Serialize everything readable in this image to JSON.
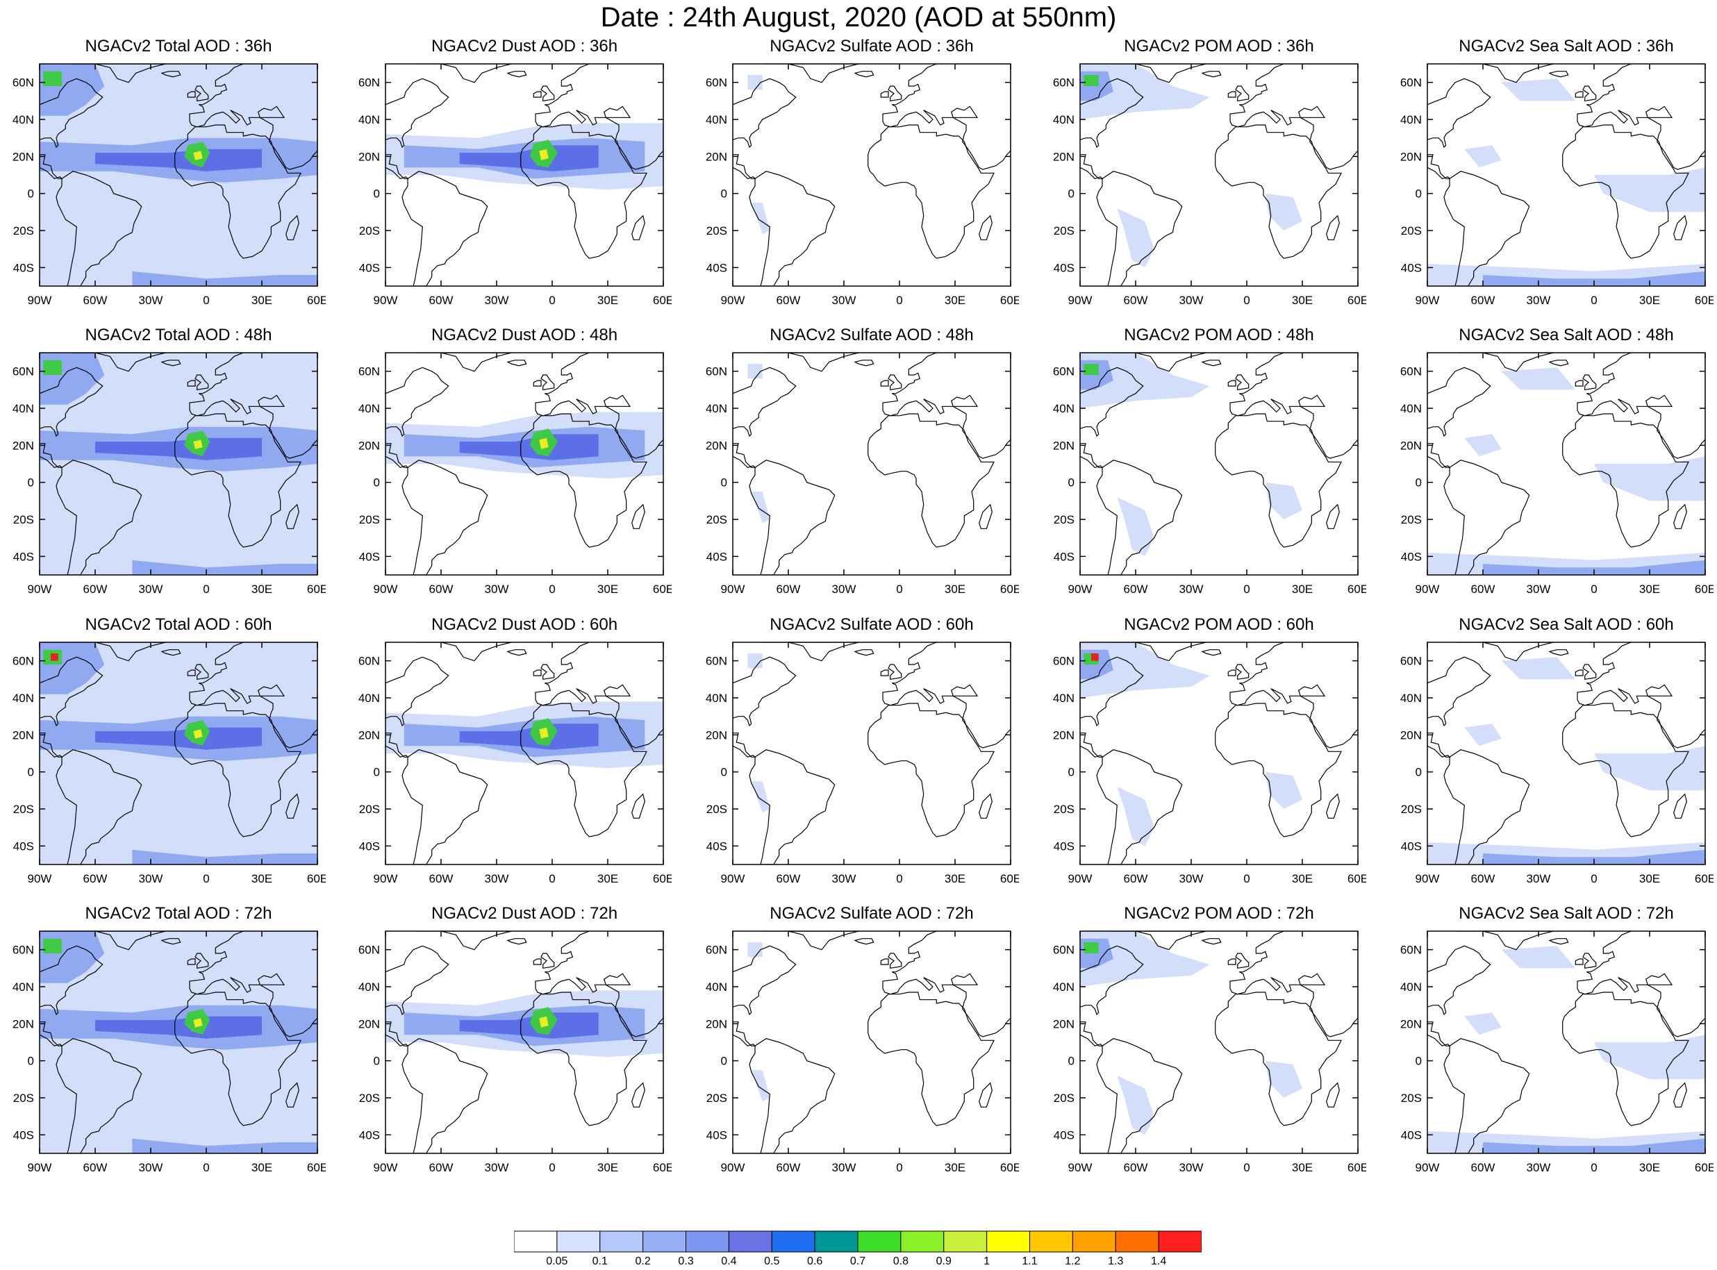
{
  "title": "Date : 24th August, 2020 (AOD at 550nm)",
  "lon_labels": [
    "90W",
    "60W",
    "30W",
    "0",
    "30E",
    "60E"
  ],
  "lat_labels": [
    "60N",
    "40N",
    "20N",
    "0",
    "20S",
    "40S"
  ],
  "lon_range": [
    -90,
    60
  ],
  "lat_range": [
    -50,
    70
  ],
  "colors": {
    "map_outline": "#000000",
    "aerosol_low": "#d0dcfa",
    "aerosol_mid": "#8ca5f0",
    "aerosol_high": "#5a6ce6",
    "hotspot_green": "#3ccc3c",
    "hotspot_yellow": "#f0f020",
    "hotspot_red": "#e62020"
  },
  "colorbar": {
    "colors": [
      "#ffffff",
      "#d6e2ff",
      "#b4c8fa",
      "#96aff5",
      "#7d96f0",
      "#6a72e6",
      "#1e6ef0",
      "#009696",
      "#3cdc28",
      "#8cf028",
      "#c8f03c",
      "#ffff00",
      "#ffc800",
      "#ffa000",
      "#ff6e00",
      "#ff1e1e"
    ],
    "labels": [
      "0.05",
      "0.1",
      "0.2",
      "0.3",
      "0.4",
      "0.5",
      "0.6",
      "0.7",
      "0.8",
      "0.9",
      "1",
      "1.1",
      "1.2",
      "1.3",
      "1.4"
    ]
  },
  "rows": [
    {
      "panels": [
        {
          "title": "NGACv2 Total AOD : 36h",
          "type": "total"
        },
        {
          "title": "NGACv2 Dust AOD : 36h",
          "type": "dust"
        },
        {
          "title": "NGACv2 Sulfate AOD : 36h",
          "type": "sulfate"
        },
        {
          "title": "NGACv2 POM AOD : 36h",
          "type": "pom"
        },
        {
          "title": "NGACv2 Sea Salt AOD : 36h",
          "type": "seasalt"
        }
      ]
    },
    {
      "panels": [
        {
          "title": "NGACv2 Total AOD : 48h",
          "type": "total"
        },
        {
          "title": "NGACv2 Dust AOD : 48h",
          "type": "dust"
        },
        {
          "title": "NGACv2 Sulfate AOD : 48h",
          "type": "sulfate"
        },
        {
          "title": "NGACv2 POM AOD : 48h",
          "type": "pom"
        },
        {
          "title": "NGACv2 Sea Salt AOD : 48h",
          "type": "seasalt"
        }
      ]
    },
    {
      "panels": [
        {
          "title": "NGACv2 Total AOD : 60h",
          "type": "total"
        },
        {
          "title": "NGACv2 Dust AOD : 60h",
          "type": "dust"
        },
        {
          "title": "NGACv2 Sulfate AOD : 60h",
          "type": "sulfate"
        },
        {
          "title": "NGACv2 POM AOD : 60h",
          "type": "pom"
        },
        {
          "title": "NGACv2 Sea Salt AOD : 60h",
          "type": "seasalt"
        }
      ]
    },
    {
      "panels": [
        {
          "title": "NGACv2 Total AOD : 72h",
          "type": "total"
        },
        {
          "title": "NGACv2 Dust AOD : 72h",
          "type": "dust"
        },
        {
          "title": "NGACv2 Sulfate AOD : 72h",
          "type": "sulfate"
        },
        {
          "title": "NGACv2 POM AOD : 72h",
          "type": "pom"
        },
        {
          "title": "NGACv2 Sea Salt  AOD : 72h",
          "type": "seasalt"
        }
      ]
    }
  ]
}
